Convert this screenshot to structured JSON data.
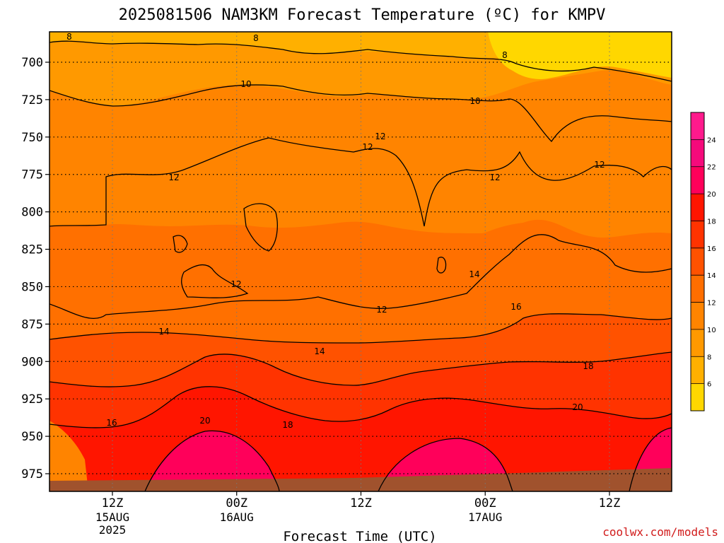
{
  "chart_data": {
    "type": "heatmap",
    "title": "2025081506 NAM3KM Forecast Temperature (ºC) for KMPV",
    "xlabel": "Forecast Time (UTC)",
    "ylabel": "",
    "credit": "coolwx.com/models",
    "y_axis": {
      "reversed": true,
      "ticks": [
        700,
        725,
        750,
        775,
        800,
        825,
        850,
        875,
        900,
        925,
        950,
        975
      ]
    },
    "x_axis": {
      "ticks": [
        {
          "label": "12Z",
          "date": "15AUG",
          "year": "2025"
        },
        {
          "label": "00Z",
          "date": "16AUG",
          "year": ""
        },
        {
          "label": "12Z",
          "date": "",
          "year": ""
        },
        {
          "label": "00Z",
          "date": "17AUG",
          "year": ""
        },
        {
          "label": "12Z",
          "date": "",
          "year": ""
        }
      ]
    },
    "grid": true,
    "colorbar": {
      "levels": [
        6,
        8,
        10,
        12,
        14,
        16,
        18,
        20,
        22,
        24
      ],
      "colors": [
        "#ffd700",
        "#ffb000",
        "#ff9900",
        "#ff8400",
        "#ff6e00",
        "#ff5200",
        "#ff3300",
        "#ff1500",
        "#ff005a",
        "#f50a7b",
        "#ff1a8c"
      ]
    },
    "contour_labels": [
      "8",
      "8",
      "8",
      "10",
      "10",
      "12",
      "12",
      "12",
      "12",
      "12",
      "12",
      "12",
      "14",
      "14",
      "14",
      "16",
      "16",
      "18",
      "18",
      "20",
      "20"
    ],
    "colors": {
      "ground": "#a0522d",
      "axis": "#000000"
    }
  }
}
